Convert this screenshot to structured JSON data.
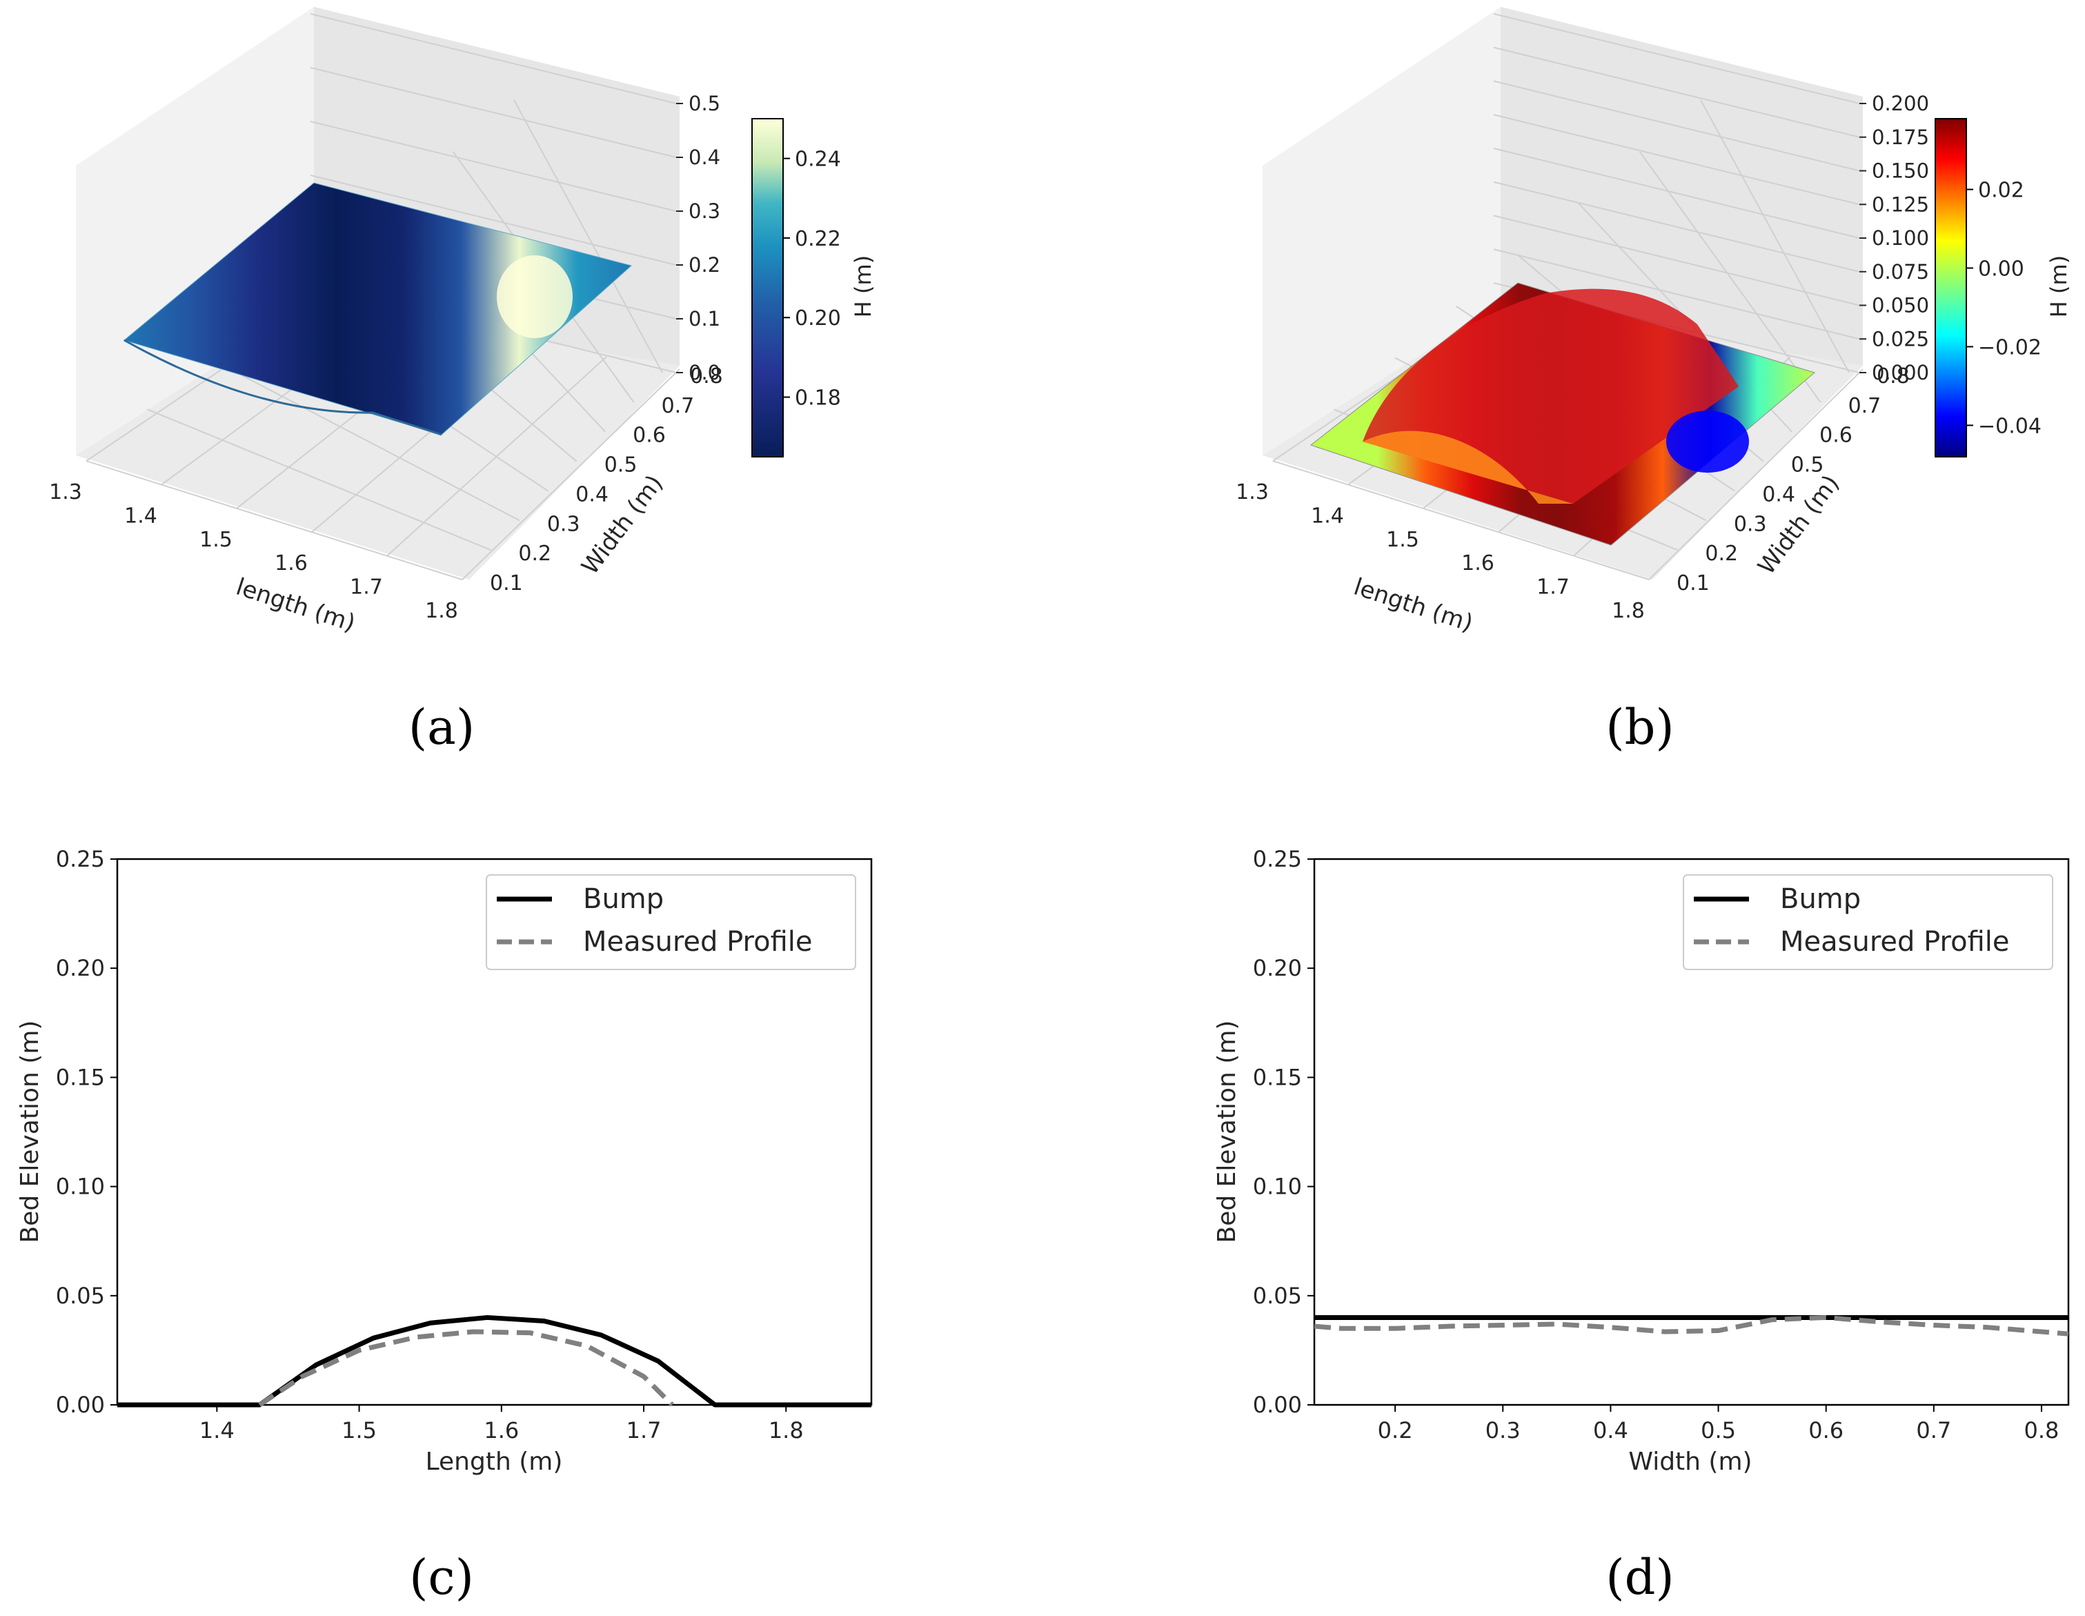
{
  "panels": [
    "(a)",
    "(b)",
    "(c)",
    "(d)"
  ],
  "colors": {
    "bump": "#000000",
    "measured": "#808080",
    "pane": "#f2f2f2",
    "grid": "#d0d0d0"
  },
  "chart_data": [
    {
      "type": "surface",
      "panel": "(a)",
      "xlabel": "length (m)",
      "ylabel": "Width (m)",
      "x_ticks": [
        "1.3",
        "1.4",
        "1.5",
        "1.6",
        "1.7",
        "1.8"
      ],
      "y_ticks": [
        "0.1",
        "0.2",
        "0.3",
        "0.4",
        "0.5",
        "0.6",
        "0.7",
        "0.8"
      ],
      "z_ticks": [
        "0.0",
        "0.1",
        "0.2",
        "0.3",
        "0.4",
        "0.5"
      ],
      "zlim": [
        0,
        0.5
      ],
      "colormap": "YlGnBu_r",
      "colorbar": {
        "label": "H (m)",
        "range": [
          0.165,
          0.25
        ],
        "ticks": [
          "0.18",
          "0.20",
          "0.22",
          "0.24"
        ]
      },
      "length_profile": {
        "x": [
          1.33,
          1.4,
          1.47,
          1.55,
          1.62,
          1.68,
          1.74,
          1.8,
          1.86
        ],
        "H": [
          0.2,
          0.19,
          0.175,
          0.165,
          0.17,
          0.19,
          0.245,
          0.21,
          0.2
        ]
      }
    },
    {
      "type": "surface",
      "panel": "(b)",
      "xlabel": "length (m)",
      "ylabel": "Width (m)",
      "x_ticks": [
        "1.3",
        "1.4",
        "1.5",
        "1.6",
        "1.7",
        "1.8"
      ],
      "y_ticks": [
        "0.1",
        "0.2",
        "0.3",
        "0.4",
        "0.5",
        "0.6",
        "0.7",
        "0.8"
      ],
      "z_ticks": [
        "0.000",
        "0.025",
        "0.050",
        "0.075",
        "0.100",
        "0.125",
        "0.150",
        "0.175",
        "0.200"
      ],
      "zlim": [
        0,
        0.2
      ],
      "colormap": "jet",
      "colorbar": {
        "label": "H (m)",
        "range": [
          -0.048,
          0.038
        ],
        "ticks": [
          "−0.04",
          "−0.02",
          "0.00",
          "0.02"
        ]
      },
      "length_profile": {
        "x": [
          1.33,
          1.4,
          1.45,
          1.5,
          1.55,
          1.59,
          1.65,
          1.7,
          1.75,
          1.8,
          1.86
        ],
        "H": [
          0.0,
          0.0,
          0.02,
          0.03,
          0.037,
          0.038,
          0.035,
          0.02,
          -0.045,
          -0.01,
          0.0
        ]
      }
    },
    {
      "type": "line",
      "panel": "(c)",
      "xlabel": "Length (m)",
      "ylabel": "Bed Elevation (m)",
      "xlim": [
        1.33,
        1.86
      ],
      "ylim": [
        0,
        0.25
      ],
      "x_ticks": [
        "1.4",
        "1.5",
        "1.6",
        "1.7",
        "1.8"
      ],
      "y_ticks": [
        "0.00",
        "0.05",
        "0.10",
        "0.15",
        "0.20",
        "0.25"
      ],
      "legend": "top-right",
      "series": [
        {
          "name": "Bump",
          "style": "solid",
          "x": [
            1.33,
            1.43,
            1.47,
            1.51,
            1.55,
            1.59,
            1.63,
            1.67,
            1.71,
            1.75,
            1.86
          ],
          "y": [
            0,
            0,
            0.0184,
            0.0306,
            0.0375,
            0.04,
            0.0384,
            0.032,
            0.0201,
            0,
            0
          ]
        },
        {
          "name": "Measured Profile",
          "style": "dashed",
          "x": [
            1.43,
            1.46,
            1.5,
            1.54,
            1.58,
            1.62,
            1.66,
            1.7,
            1.72
          ],
          "y": [
            0,
            0.013,
            0.025,
            0.031,
            0.0335,
            0.033,
            0.027,
            0.013,
            0
          ]
        }
      ]
    },
    {
      "type": "line",
      "panel": "(d)",
      "xlabel": "Width (m)",
      "ylabel": "Bed Elevation (m)",
      "xlim": [
        0.125,
        0.825
      ],
      "ylim": [
        0,
        0.25
      ],
      "x_ticks": [
        "0.2",
        "0.3",
        "0.4",
        "0.5",
        "0.6",
        "0.7",
        "0.8"
      ],
      "y_ticks": [
        "0.00",
        "0.05",
        "0.10",
        "0.15",
        "0.20",
        "0.25"
      ],
      "legend": "top-right",
      "series": [
        {
          "name": "Bump",
          "style": "solid",
          "x": [
            0.125,
            0.825
          ],
          "y": [
            0.04,
            0.04
          ]
        },
        {
          "name": "Measured Profile",
          "style": "dashed",
          "x": [
            0.125,
            0.15,
            0.2,
            0.25,
            0.3,
            0.35,
            0.4,
            0.45,
            0.5,
            0.55,
            0.6,
            0.65,
            0.7,
            0.75,
            0.8,
            0.825
          ],
          "y": [
            0.036,
            0.035,
            0.035,
            0.036,
            0.0365,
            0.037,
            0.0355,
            0.0335,
            0.034,
            0.039,
            0.04,
            0.038,
            0.0365,
            0.0355,
            0.0335,
            0.0325
          ]
        }
      ]
    }
  ]
}
